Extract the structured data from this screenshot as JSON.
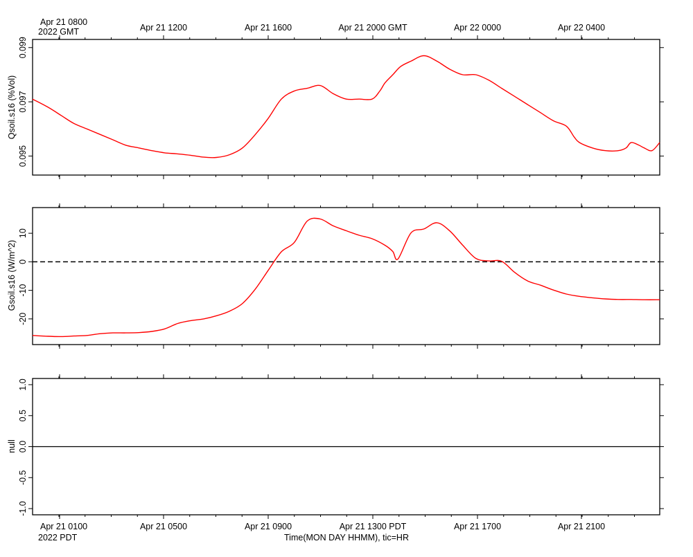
{
  "top_axis": {
    "first_label_line1": "Apr 21 0800",
    "first_label_line2": "2022 GMT",
    "labels": [
      "Apr 21 1200",
      "Apr 21 1600",
      "Apr 21 2000 GMT",
      "Apr 22 0000",
      "Apr 22 0400"
    ]
  },
  "bottom_axis": {
    "first_label_line1": "Apr 21 0100",
    "first_label_line2": "2022 PDT",
    "labels": [
      "Apr 21 0500",
      "Apr 21 0900",
      "Apr 21 1300 PDT",
      "Apr 21 1700",
      "Apr 21 2100"
    ],
    "xlabel": "Time(MON DAY HHMM), tic=HR"
  },
  "colors": {
    "series": "#ff0000",
    "frame": "#000000"
  },
  "chart_data": [
    {
      "type": "line",
      "ylabel": "Qsoil.s16 (%Vol)",
      "ylim": [
        0.0943,
        0.0993
      ],
      "yticks": [
        0.095,
        0.097,
        0.099
      ],
      "ytick_labels": [
        "0.095",
        "0.097",
        "0.099"
      ],
      "x_units": "hours since Apr 21 0000 PDT",
      "xlim": [
        -0.6,
        23.6
      ],
      "series": [
        {
          "x": [
            -0.6,
            0.0,
            0.5,
            1.0,
            1.5,
            2.0,
            2.5,
            3.0,
            3.5,
            4.0,
            4.5,
            5.0,
            5.5,
            6.0,
            6.5,
            7.0,
            7.5,
            8.0,
            8.5,
            9.0,
            9.5,
            10.0,
            10.5,
            11.0,
            11.5,
            12.0,
            12.5,
            12.8,
            13.0,
            13.3,
            13.6,
            14.0,
            14.5,
            15.0,
            15.5,
            16.0,
            16.5,
            17.0,
            17.5,
            18.0,
            18.5,
            19.0,
            19.5,
            20.0,
            20.3,
            20.5,
            21.0,
            21.5,
            22.0,
            22.3,
            22.5,
            22.8,
            23.0,
            23.3,
            23.6
          ],
          "y": [
            0.0971,
            0.0968,
            0.0965,
            0.0962,
            0.096,
            0.0958,
            0.0956,
            0.0954,
            0.0953,
            0.0952,
            0.09512,
            0.09508,
            0.09503,
            0.09496,
            0.09495,
            0.09505,
            0.0953,
            0.0958,
            0.0964,
            0.0971,
            0.0974,
            0.0975,
            0.0976,
            0.0973,
            0.0971,
            0.0971,
            0.0971,
            0.0974,
            0.0977,
            0.098,
            0.0983,
            0.0985,
            0.0987,
            0.0985,
            0.0982,
            0.098,
            0.098,
            0.0978,
            0.0975,
            0.0972,
            0.0969,
            0.0966,
            0.0963,
            0.0961,
            0.0957,
            0.0955,
            0.0953,
            0.0952,
            0.0952,
            0.0953,
            0.0955,
            0.0954,
            0.0953,
            0.0952,
            0.0955
          ]
        }
      ]
    },
    {
      "type": "line",
      "ylabel": "Gsoil.s16 (W/m^2)",
      "ylim": [
        -29,
        19
      ],
      "yticks": [
        -20,
        -10,
        0,
        10
      ],
      "ytick_labels": [
        "-20",
        "-10",
        "0",
        "10"
      ],
      "zero_line": "dashed",
      "x_units": "hours since Apr 21 0000 PDT",
      "xlim": [
        -0.6,
        23.6
      ],
      "series": [
        {
          "x": [
            -0.6,
            0.0,
            0.5,
            1.0,
            1.5,
            2.0,
            2.5,
            3.0,
            3.5,
            4.0,
            4.5,
            5.0,
            5.5,
            6.0,
            6.5,
            7.0,
            7.5,
            8.0,
            8.5,
            9.0,
            9.5,
            10.0,
            10.5,
            11.0,
            11.5,
            12.0,
            12.5,
            13.0,
            13.3,
            13.5,
            14.0,
            14.5,
            15.0,
            15.5,
            16.0,
            16.5,
            17.0,
            17.5,
            18.0,
            18.5,
            19.0,
            19.5,
            20.0,
            20.5,
            21.0,
            21.5,
            22.0,
            22.5,
            23.0,
            23.6
          ],
          "y": [
            -25.8,
            -26.1,
            -26.2,
            -26.0,
            -25.8,
            -25.2,
            -24.9,
            -24.9,
            -24.8,
            -24.4,
            -23.5,
            -21.6,
            -20.6,
            -20.0,
            -18.9,
            -17.3,
            -14.6,
            -9.5,
            -2.9,
            3.5,
            6.8,
            14.3,
            15.0,
            12.6,
            10.9,
            9.3,
            8.1,
            5.8,
            3.6,
            1.0,
            10.1,
            11.5,
            13.7,
            10.8,
            5.8,
            1.2,
            0.3,
            0.2,
            -3.7,
            -6.7,
            -8.2,
            -9.9,
            -11.3,
            -12.1,
            -12.6,
            -13.0,
            -13.2,
            -13.2,
            -13.3,
            -13.3
          ]
        }
      ]
    },
    {
      "type": "line",
      "ylabel": "null",
      "ylim": [
        -1.1,
        1.1
      ],
      "yticks": [
        -1.0,
        -0.5,
        0.0,
        0.5,
        1.0
      ],
      "ytick_labels": [
        "-1.0",
        "-0.5",
        "0.0",
        "0.5",
        "1.0"
      ],
      "zero_line": "solid",
      "series": []
    }
  ]
}
